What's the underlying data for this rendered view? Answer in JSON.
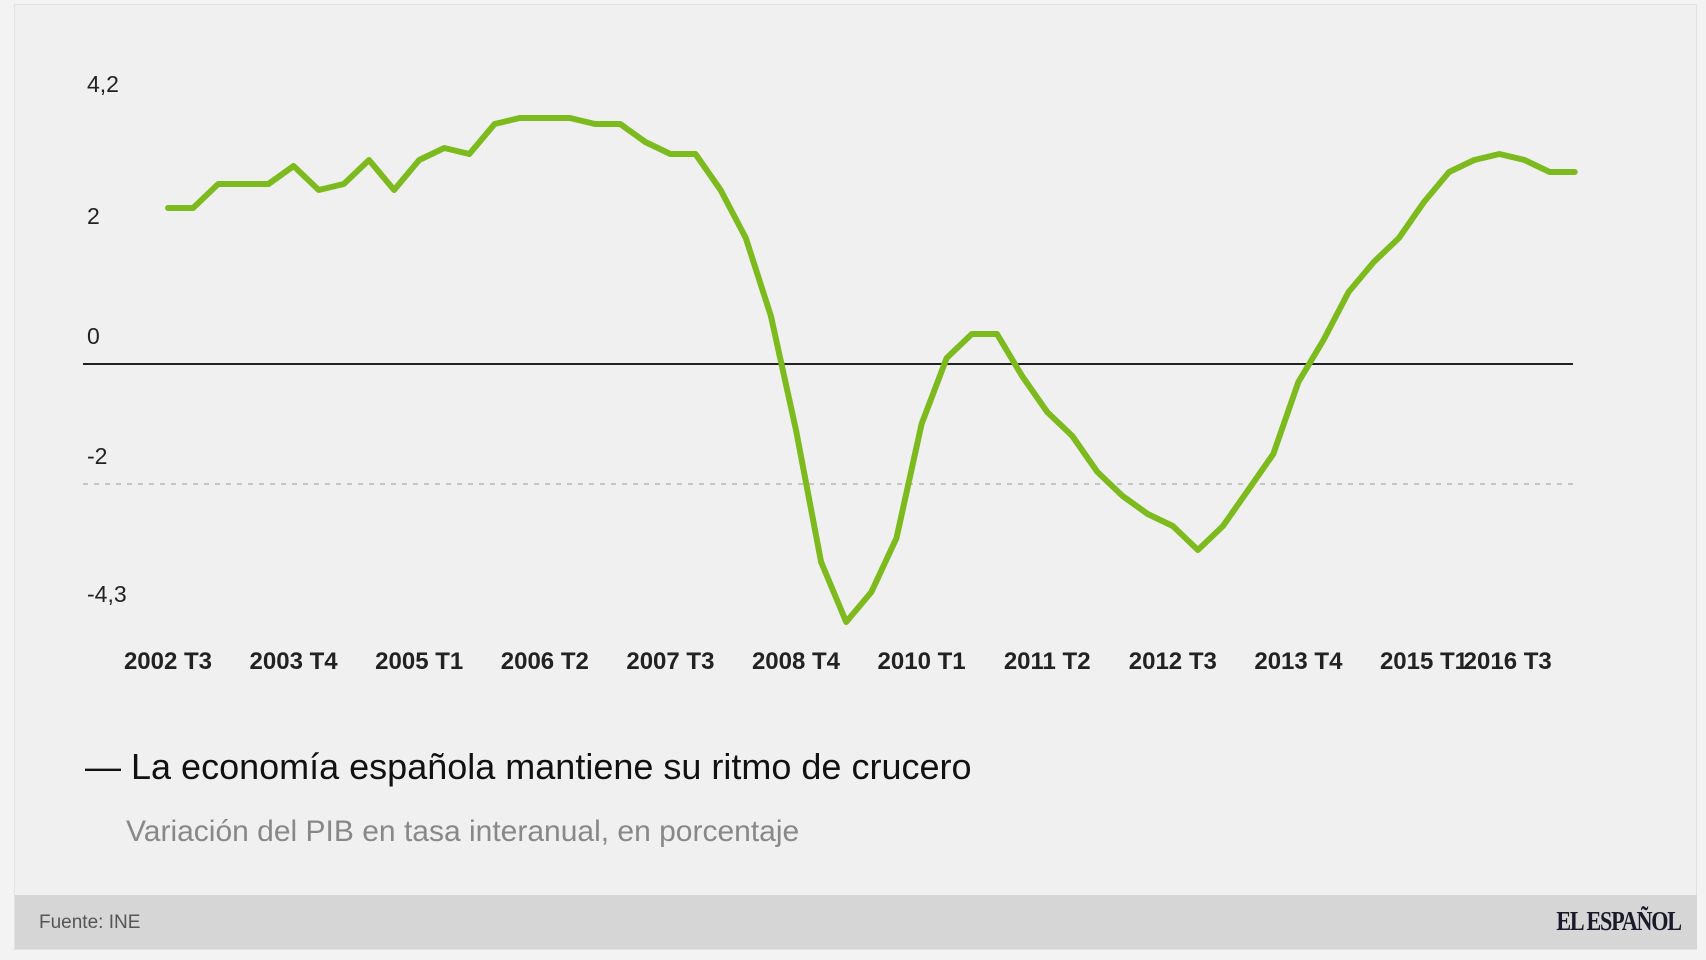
{
  "chart": {
    "title_prefix": "—",
    "title": "La economía española mantiene su ritmo de crucero",
    "subtitle": "Variación del PIB en tasa interanual, en porcentaje"
  },
  "footer": {
    "source": "Fuente: INE",
    "brand": "EL ESPAÑOL"
  },
  "colors": {
    "line": "#7cba1e",
    "zero_line": "#222222",
    "grid_dotted": "#c4c4c4",
    "background": "#f0f0f0",
    "footer_band": "#d6d6d6"
  },
  "chart_data": {
    "type": "line",
    "title": "La economía española mantiene su ritmo de crucero",
    "subtitle": "Variación del PIB en tasa interanual, en porcentaje",
    "xlabel": "",
    "ylabel": "",
    "source": "Fuente: INE",
    "ylim": [
      -4.3,
      4.2
    ],
    "yticks": [
      {
        "value": 4.2,
        "label": "4,2"
      },
      {
        "value": 2,
        "label": "2"
      },
      {
        "value": 0,
        "label": "0"
      },
      {
        "value": -2,
        "label": "-2"
      },
      {
        "value": -4.3,
        "label": "-4,3"
      }
    ],
    "gridlines": [
      {
        "value": 0,
        "style": "solid"
      },
      {
        "value": -2,
        "style": "dotted"
      }
    ],
    "legend": null,
    "xtick_labels": [
      {
        "index": 0,
        "label": "2002 T3"
      },
      {
        "index": 5,
        "label": "2003 T4"
      },
      {
        "index": 10,
        "label": "2005 T1"
      },
      {
        "index": 15,
        "label": "2006 T2"
      },
      {
        "index": 20,
        "label": "2007 T3"
      },
      {
        "index": 25,
        "label": "2008 T4"
      },
      {
        "index": 30,
        "label": "2010 T1"
      },
      {
        "index": 35,
        "label": "2011 T2"
      },
      {
        "index": 40,
        "label": "2012 T3"
      },
      {
        "index": 45,
        "label": "2013 T4"
      },
      {
        "index": 50,
        "label": "2015 T1"
      },
      {
        "index": 56,
        "label": "2016 T3",
        "offset": -67
      }
    ],
    "x": [
      "2002 T3",
      "2002 T4",
      "2003 T1",
      "2003 T2",
      "2003 T3",
      "2003 T4",
      "2004 T1",
      "2004 T2",
      "2004 T3",
      "2004 T4",
      "2005 T1",
      "2005 T2",
      "2005 T3",
      "2005 T4",
      "2006 T1",
      "2006 T2",
      "2006 T3",
      "2006 T4",
      "2007 T1",
      "2007 T2",
      "2007 T3",
      "2007 T4",
      "2008 T1",
      "2008 T2",
      "2008 T3",
      "2008 T4",
      "2009 T1",
      "2009 T2",
      "2009 T3",
      "2009 T4",
      "2010 T1",
      "2010 T2",
      "2010 T3",
      "2010 T4",
      "2011 T1",
      "2011 T2",
      "2011 T3",
      "2011 T4",
      "2012 T1",
      "2012 T2",
      "2012 T3",
      "2012 T4",
      "2013 T1",
      "2013 T2",
      "2013 T3",
      "2013 T4",
      "2014 T1",
      "2014 T2",
      "2014 T3",
      "2014 T4",
      "2015 T1",
      "2015 T2",
      "2015 T3",
      "2015 T4",
      "2016 T1",
      "2016 T2",
      "2016 T3"
    ],
    "series": [
      {
        "name": "Variación del PIB (%)",
        "values": [
          2.6,
          2.6,
          3.0,
          3.0,
          3.0,
          3.3,
          2.9,
          3.0,
          3.4,
          2.9,
          3.4,
          3.6,
          3.5,
          4.0,
          4.1,
          4.1,
          4.1,
          4.0,
          4.0,
          3.7,
          3.5,
          3.5,
          2.9,
          2.1,
          0.8,
          -1.1,
          -3.3,
          -4.3,
          -3.8,
          -2.9,
          -1.0,
          0.1,
          0.5,
          0.5,
          -0.2,
          -0.8,
          -1.2,
          -1.8,
          -2.2,
          -2.5,
          -2.7,
          -3.1,
          -2.7,
          -2.1,
          -1.5,
          -0.3,
          0.4,
          1.2,
          1.7,
          2.1,
          2.7,
          3.2,
          3.4,
          3.5,
          3.4,
          3.2,
          3.2
        ]
      }
    ]
  }
}
